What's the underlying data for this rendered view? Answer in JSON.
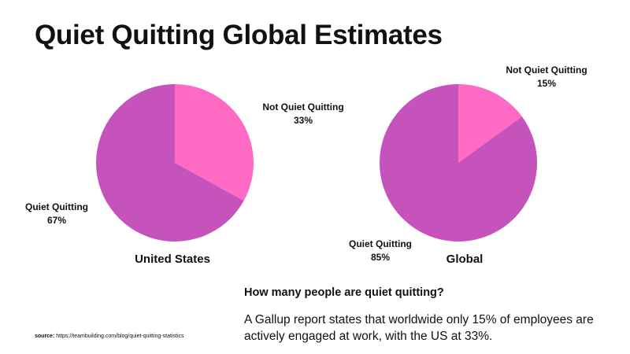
{
  "title": "Quiet Quitting Global Estimates",
  "colors": {
    "quiet_quitting": "#c652bb",
    "not_quiet_quitting": "#ff6ac4"
  },
  "chart_data": [
    {
      "type": "pie",
      "title": "United States",
      "slices": [
        {
          "label": "Not Quiet Quitting",
          "value": 33,
          "value_label": "33%",
          "color": "#ff6ac4"
        },
        {
          "label": "Quiet Quitting",
          "value": 67,
          "value_label": "67%",
          "color": "#c652bb"
        }
      ]
    },
    {
      "type": "pie",
      "title": "Global",
      "slices": [
        {
          "label": "Not Quiet Quitting",
          "value": 15,
          "value_label": "15%",
          "color": "#ff6ac4"
        },
        {
          "label": "Quiet Quitting",
          "value": 85,
          "value_label": "85%",
          "color": "#c652bb"
        }
      ]
    }
  ],
  "info": {
    "heading": "How many people are quiet quitting?",
    "body": "A Gallup report states that worldwide only 15% of employees are actively engaged at work, with the US at 33%."
  },
  "source": {
    "label": "source:",
    "url": "https://teambuilding.com/blog/quiet-quitting-statistics"
  }
}
